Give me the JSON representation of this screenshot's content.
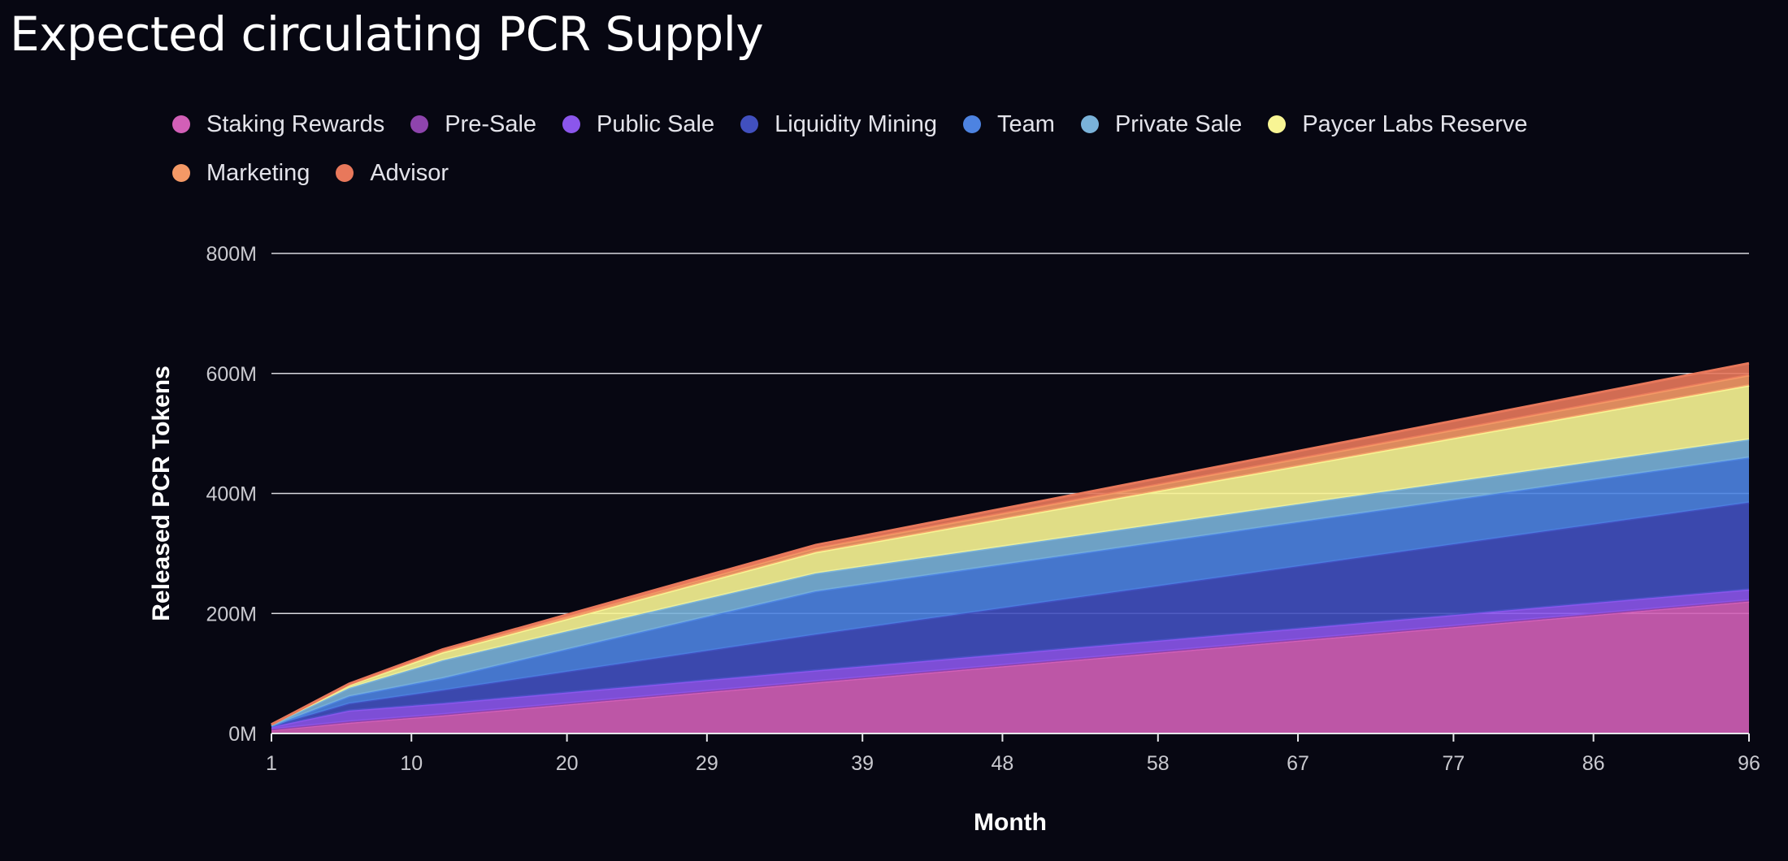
{
  "chart_data": {
    "type": "area",
    "stacked": true,
    "title": "Expected circulating PCR Supply",
    "xlabel": "Month",
    "ylabel": "Released PCR Tokens",
    "x_ticks": [
      "1",
      "10",
      "20",
      "29",
      "39",
      "48",
      "58",
      "67",
      "77",
      "86",
      "96"
    ],
    "y_ticks": [
      "0M",
      "200M",
      "400M",
      "600M",
      "800M"
    ],
    "ylim": [
      0,
      800
    ],
    "y_unit": "M",
    "grid": true,
    "legend_position": "top",
    "x": [
      1,
      6,
      12,
      36,
      96
    ],
    "series": [
      {
        "name": "Staking Rewards",
        "color": "#d25fb7",
        "values": [
          6,
          18,
          30,
          85,
          220
        ]
      },
      {
        "name": "Pre-Sale",
        "color": "#8e44ad",
        "values": [
          1,
          2,
          2,
          2,
          2
        ]
      },
      {
        "name": "Public Sale",
        "color": "#8b56ec",
        "values": [
          4,
          18,
          18,
          18,
          18
        ]
      },
      {
        "name": "Liquidity Mining",
        "color": "#4150bf",
        "values": [
          1,
          12,
          22,
          60,
          145
        ]
      },
      {
        "name": "Team",
        "color": "#4d83e1",
        "values": [
          0,
          12,
          20,
          72,
          75
        ]
      },
      {
        "name": "Private Sale",
        "color": "#7ab2d9",
        "values": [
          2,
          14,
          30,
          30,
          30
        ]
      },
      {
        "name": "Paycer Labs Reserve",
        "color": "#f8f594",
        "values": [
          1,
          5,
          13,
          35,
          90
        ]
      },
      {
        "name": "Marketing",
        "color": "#f49966",
        "values": [
          0,
          1,
          3,
          7,
          17
        ]
      },
      {
        "name": "Advisor",
        "color": "#e8785b",
        "values": [
          0,
          1,
          2,
          5,
          20
        ]
      }
    ]
  }
}
